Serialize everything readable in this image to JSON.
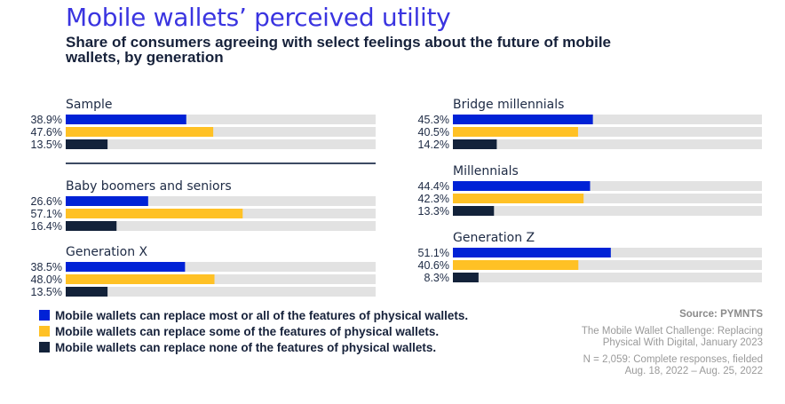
{
  "header": {
    "title": "Mobile wallets’ perceived utility",
    "subtitle": "Share of consumers agreeing with select feelings about the future of mobile wallets, by generation"
  },
  "colors": {
    "most_all": "#0022d6",
    "some": "#ffc125",
    "none": "#13223a",
    "track": "#e2e2e2",
    "divider": "#3d4a63"
  },
  "chart_data": {
    "type": "bar",
    "orientation": "horizontal",
    "title": "Mobile wallets’ perceived utility",
    "subtitle": "Share of consumers agreeing with select feelings about the future of mobile wallets, by generation",
    "xlim": [
      0,
      100
    ],
    "unit": "%",
    "series_names": [
      "Mobile wallets can replace most or all of the features of physical wallets.",
      "Mobile wallets can replace some of the features of physical wallets.",
      "Mobile wallets can replace none of the features of physical wallets."
    ],
    "groups": [
      {
        "name": "Sample",
        "values": [
          38.9,
          47.6,
          13.5
        ],
        "labels": [
          "38.9%",
          "47.6%",
          "13.5%"
        ]
      },
      {
        "name": "Baby boomers and seniors",
        "values": [
          26.6,
          57.1,
          16.4
        ],
        "labels": [
          "26.6%",
          "57.1%",
          "16.4%"
        ]
      },
      {
        "name": "Generation X",
        "values": [
          38.5,
          48.0,
          13.5
        ],
        "labels": [
          "38.5%",
          "48.0%",
          "13.5%"
        ]
      },
      {
        "name": "Bridge millennials",
        "values": [
          45.3,
          40.5,
          14.2
        ],
        "labels": [
          "45.3%",
          "40.5%",
          "14.2%"
        ]
      },
      {
        "name": "Millennials",
        "values": [
          44.4,
          42.3,
          13.3
        ],
        "labels": [
          "44.4%",
          "42.3%",
          "13.3%"
        ]
      },
      {
        "name": "Generation Z",
        "values": [
          51.1,
          40.6,
          8.3
        ],
        "labels": [
          "51.1%",
          "40.6%",
          "8.3%"
        ]
      }
    ],
    "legend_position": "bottom-left"
  },
  "legend": [
    {
      "key": "most_all",
      "label": "Mobile wallets can replace most or all of the features of physical wallets."
    },
    {
      "key": "some",
      "label": "Mobile wallets can replace some of the features of physical wallets."
    },
    {
      "key": "none",
      "label": "Mobile wallets can replace none of the features of physical wallets."
    }
  ],
  "source": {
    "heading": "Source: PYMNTS",
    "report_line1": "The Mobile Wallet Challenge: Replacing",
    "report_line2": "Physical With Digital, January 2023",
    "sample_line1": "N = 2,059: Complete responses, fielded",
    "sample_line2": "Aug. 18, 2022 – Aug. 25, 2022"
  }
}
